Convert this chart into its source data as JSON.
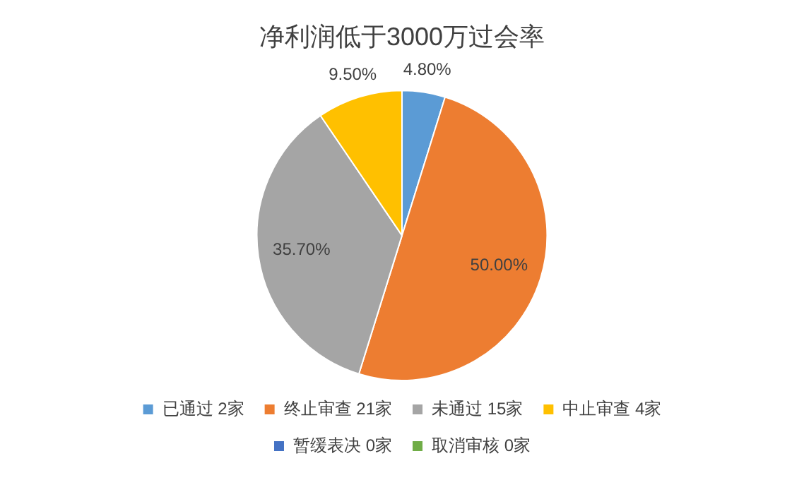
{
  "chart_data": {
    "type": "pie",
    "title": "净利润低于3000万过会率",
    "categories": [
      "已通过 2家",
      "终止审查 21家",
      "未通过 15家",
      "中止审查 4家",
      "暂缓表决 0家",
      "取消审核 0家"
    ],
    "values": [
      4.8,
      50.0,
      35.7,
      9.5,
      0,
      0
    ],
    "colors": [
      "#5b9bd5",
      "#ed7d31",
      "#a5a5a5",
      "#ffc000",
      "#4472c4",
      "#70ad47"
    ],
    "value_labels": [
      "4.80%",
      "50.00%",
      "35.70%",
      "9.50%",
      null,
      null
    ],
    "legend": "bottom"
  }
}
